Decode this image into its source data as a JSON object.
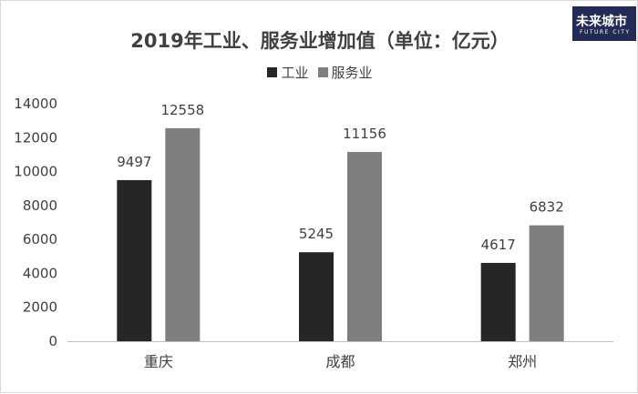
{
  "logo": {
    "main": "未来城市",
    "sub": "FUTURE CITY"
  },
  "chart_data": {
    "type": "bar",
    "title": "2019年工业、服务业增加值（单位：亿元）",
    "categories": [
      "重庆",
      "成都",
      "郑州"
    ],
    "series": [
      {
        "name": "工业",
        "values": [
          9497,
          5245,
          4617
        ],
        "color": "#262626"
      },
      {
        "name": "服务业",
        "values": [
          12558,
          11156,
          6832
        ],
        "color": "#7f7f7f"
      }
    ],
    "ylim": [
      0,
      14000
    ],
    "yticks": [
      0,
      2000,
      4000,
      6000,
      8000,
      10000,
      12000,
      14000
    ],
    "grid": false,
    "legend_position": "top"
  }
}
